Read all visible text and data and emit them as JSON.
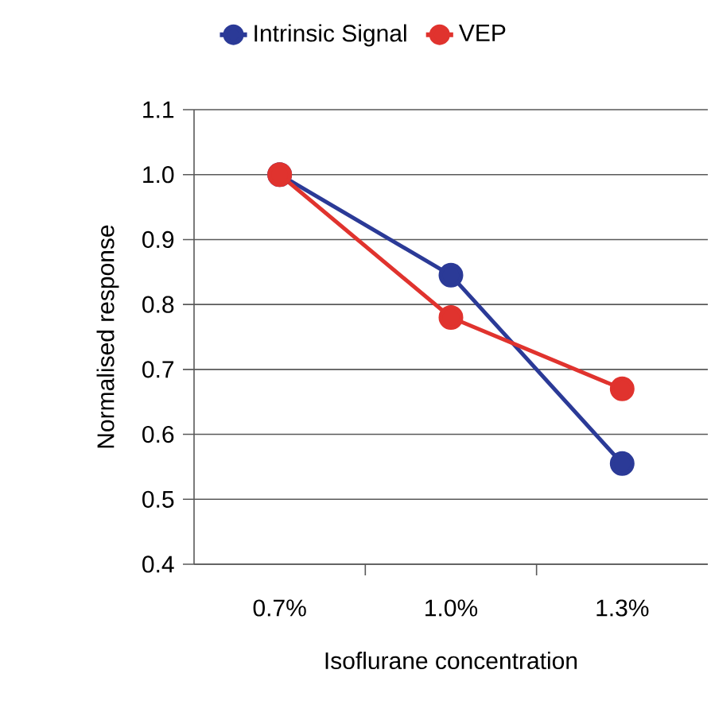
{
  "chart_data": {
    "type": "line",
    "xlabel": "Isoflurane concentration",
    "ylabel": "Normalised response",
    "categories": [
      "0.7%",
      "1.0%",
      "1.3%"
    ],
    "series": [
      {
        "name": "Intrinsic Signal",
        "color": "#2b3a97",
        "values": [
          1.0,
          0.845,
          0.555
        ]
      },
      {
        "name": "VEP",
        "color": "#e0332e",
        "values": [
          1.0,
          0.78,
          0.67
        ]
      }
    ],
    "ylim": [
      0.4,
      1.1
    ],
    "yticks": [
      0.4,
      0.5,
      0.6,
      0.7,
      0.8,
      0.9,
      {
        "value": 1.0,
        "label": "1.0"
      },
      1.1
    ],
    "grid": "y",
    "legend": "top",
    "marker": "circle",
    "line_style": "solid"
  }
}
